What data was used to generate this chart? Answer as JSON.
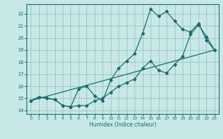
{
  "xlabel": "Humidex (Indice chaleur)",
  "xlim": [
    -0.5,
    23.5
  ],
  "ylim": [
    13.7,
    22.8
  ],
  "yticks": [
    14,
    15,
    16,
    17,
    18,
    19,
    20,
    21,
    22
  ],
  "xtick_labels": [
    "0",
    "1",
    "2",
    "3",
    "4",
    "5",
    "6",
    "7",
    "8",
    "9",
    "10",
    "11",
    "12",
    "13",
    "14",
    "15",
    "16",
    "17",
    "18",
    "19",
    "20",
    "21",
    "22",
    "23"
  ],
  "xticks": [
    0,
    1,
    2,
    3,
    4,
    5,
    6,
    7,
    8,
    9,
    10,
    11,
    12,
    13,
    14,
    15,
    16,
    17,
    18,
    19,
    20,
    21,
    22,
    23
  ],
  "background_color": "#c8e8e8",
  "grid_color": "#a0c8c8",
  "line_color": "#1a6b6b",
  "line1_x": [
    0,
    1,
    2,
    3,
    4,
    5,
    6,
    7,
    8,
    9,
    10,
    11,
    12,
    13,
    14,
    15,
    16,
    17,
    18,
    19,
    20,
    21,
    22,
    23
  ],
  "line1_y": [
    14.8,
    15.1,
    15.0,
    14.9,
    14.4,
    14.3,
    14.4,
    14.4,
    14.8,
    15.0,
    15.5,
    16.0,
    16.3,
    16.6,
    17.5,
    18.1,
    17.3,
    17.1,
    17.8,
    18.5,
    20.3,
    21.1,
    20.1,
    19.0
  ],
  "line2_x": [
    0,
    1,
    2,
    3,
    4,
    5,
    6,
    7,
    8,
    9,
    10,
    11,
    12,
    13,
    14,
    15,
    16,
    17,
    18,
    19,
    20,
    21,
    22,
    23
  ],
  "line2_y": [
    14.8,
    15.1,
    15.0,
    14.9,
    14.4,
    14.3,
    15.8,
    16.0,
    15.2,
    14.8,
    16.5,
    17.5,
    18.1,
    18.7,
    20.4,
    22.4,
    21.8,
    22.2,
    21.4,
    20.7,
    20.5,
    21.2,
    19.8,
    19.0
  ],
  "line3_x": [
    0,
    23
  ],
  "line3_y": [
    14.8,
    19.0
  ]
}
